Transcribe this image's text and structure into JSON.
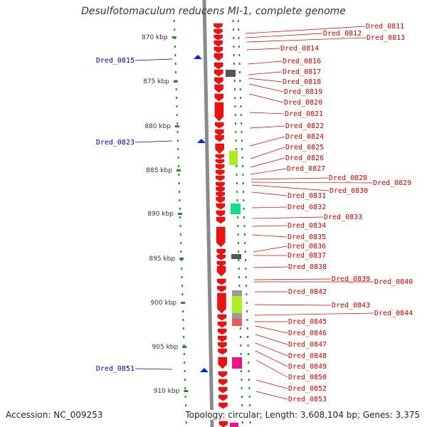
{
  "title": "Desulfotomaculum reducens MI-1, complete genome",
  "footer": {
    "accession": "Accession: NC_009253",
    "summary": "Topology: circular; Length: 3,608,104 bp; Genes: 3,375"
  },
  "colors": {
    "gene": "#ee1111",
    "gene_label": "#cc0000",
    "left_label": "#0000aa",
    "dots": "#2a8a2a",
    "backbone": "#8a8a8a",
    "ruler": "#333333"
  },
  "ruler_ticks": [
    "870 kbp",
    "875 kbp",
    "880 kbp",
    "885 kbp",
    "890 kbp",
    "895 kbp",
    "900 kbp",
    "905 kbp",
    "910 kbp"
  ],
  "left_genes": [
    "Dred_0815",
    "Dred_0823",
    "Dred_0851"
  ],
  "right_genes": [
    "Dred_0811",
    "Dred_0812",
    "Dred_0813",
    "Dred_0814",
    "Dred_0816",
    "Dred_0817",
    "Dred_0818",
    "Dred_0819",
    "Dred_0820",
    "Dred_0821",
    "Dred_0822",
    "Dred_0824",
    "Dred_0825",
    "Dred_0826",
    "Dred_0827",
    "Dred_0828",
    "Dred_0829",
    "Dred_0830",
    "Dred_0831",
    "Dred_0832",
    "Dred_0833",
    "Dred_0834",
    "Dred_0835",
    "Dred_0836",
    "Dred_0837",
    "Dred_0838",
    "Dred_0839",
    "Dred_0840",
    "Dred_0842",
    "Dred_0843",
    "Dred_0844",
    "Dred_0845",
    "Dred_0846",
    "Dred_0847",
    "Dred_0848",
    "Dred_0849",
    "Dred_0850",
    "Dred_0852",
    "Dred_0853"
  ]
}
